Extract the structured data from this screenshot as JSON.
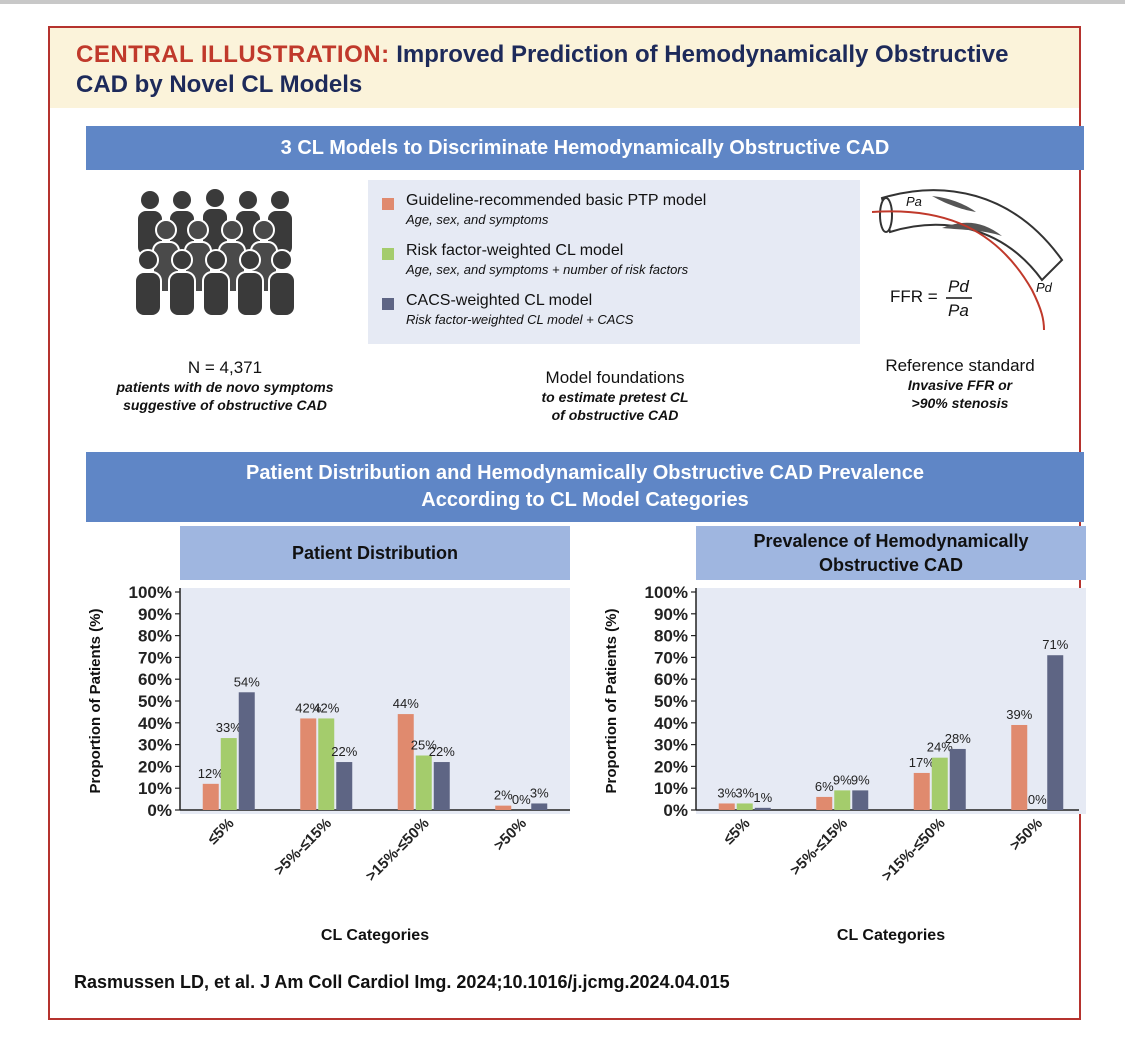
{
  "title": {
    "lead": "CENTRAL ILLUSTRATION:",
    "rest": "Improved Prediction of Hemodynamically Obstructive CAD by Novel CL Models"
  },
  "banner1": "3 CL Models to Discriminate Hemodynamically Obstructive CAD",
  "cohort": {
    "count": "N = 4,371",
    "desc_line1": "patients with de novo symptoms",
    "desc_line2": "suggestive of obstructive CAD"
  },
  "models": [
    {
      "name": "Guideline-recommended basic PTP model",
      "desc": "Age, sex, and symptoms",
      "color": "#e08a6e"
    },
    {
      "name": "Risk factor-weighted CL model",
      "desc": "Age, sex, and symptoms + number of risk factors",
      "color": "#a4cc6c"
    },
    {
      "name": "CACS-weighted CL model",
      "desc": "Risk factor-weighted CL model + CACS",
      "color": "#5e6584"
    }
  ],
  "foundations": {
    "title": "Model foundations",
    "line1": "to estimate pretest CL",
    "line2": "of obstructive CAD"
  },
  "ffr": {
    "lhs": "FFR =",
    "num": "Pd",
    "den": "Pa",
    "pa_label": "Pa",
    "pd_label": "Pd"
  },
  "reference": {
    "title": "Reference standard",
    "line1": "Invasive FFR or",
    "line2": ">90% stenosis"
  },
  "banner2": {
    "line1": "Patient Distribution and Hemodynamically Obstructive CAD Prevalence",
    "line2": "According to CL Model Categories"
  },
  "panel_left_title": "Patient Distribution",
  "panel_right_title": {
    "line1": "Prevalence of Hemodynamically",
    "line2": "Obstructive CAD"
  },
  "chart_data": [
    {
      "type": "bar",
      "title": "Patient Distribution",
      "xlabel": "CL Categories",
      "ylabel": "Proportion of Patients (%)",
      "ylim": [
        0,
        100
      ],
      "yticks": [
        "0%",
        "10%",
        "20%",
        "30%",
        "40%",
        "50%",
        "60%",
        "70%",
        "80%",
        "90%",
        "100%"
      ],
      "categories": [
        "≤5%",
        ">5%-≤15%",
        ">15%-≤50%",
        ">50%"
      ],
      "series": [
        {
          "name": "Guideline-recommended basic PTP model",
          "values": [
            12,
            42,
            44,
            2
          ],
          "labels": [
            "12%",
            "42%",
            "44%",
            "2%"
          ]
        },
        {
          "name": "Risk factor-weighted CL model",
          "values": [
            33,
            42,
            25,
            0
          ],
          "labels": [
            "33%",
            "42%",
            "25%",
            "0%"
          ]
        },
        {
          "name": "CACS-weighted CL model",
          "values": [
            54,
            22,
            22,
            3
          ],
          "labels": [
            "54%",
            "22%",
            "22%",
            "3%"
          ]
        }
      ]
    },
    {
      "type": "bar",
      "title": "Prevalence of Hemodynamically Obstructive CAD",
      "xlabel": "CL Categories",
      "ylabel": "Proportion of Patients (%)",
      "ylim": [
        0,
        100
      ],
      "yticks": [
        "0%",
        "10%",
        "20%",
        "30%",
        "40%",
        "50%",
        "60%",
        "70%",
        "80%",
        "90%",
        "100%"
      ],
      "categories": [
        "≤5%",
        ">5%-≤15%",
        ">15%-≤50%",
        ">50%"
      ],
      "series": [
        {
          "name": "Guideline-recommended basic PTP model",
          "values": [
            3,
            6,
            17,
            39
          ],
          "labels": [
            "3%",
            "6%",
            "17%",
            "39%"
          ]
        },
        {
          "name": "Risk factor-weighted CL model",
          "values": [
            3,
            9,
            24,
            0
          ],
          "labels": [
            "3%",
            "9%",
            "24%",
            "0%"
          ]
        },
        {
          "name": "CACS-weighted CL model",
          "values": [
            1,
            9,
            28,
            71
          ],
          "labels": [
            "1%",
            "9%",
            "28%",
            "71%"
          ]
        }
      ]
    }
  ],
  "footer": "Rasmussen LD, et al. J Am Coll Cardiol Img. 2024;10.1016/j.jcmg.2024.04.015"
}
